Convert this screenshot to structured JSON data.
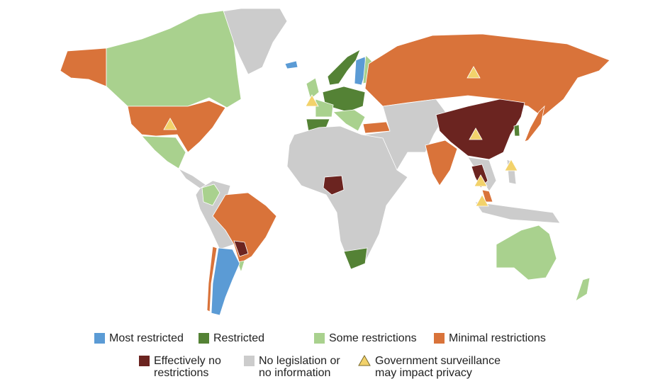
{
  "legend": {
    "items": [
      {
        "label": "Most restricted",
        "color": "#5b9bd5"
      },
      {
        "label": "Restricted",
        "color": "#548235"
      },
      {
        "label": "Some restrictions",
        "color": "#a9d18e"
      },
      {
        "label": "Minimal restrictions",
        "color": "#d9733a"
      },
      {
        "label": "Effectively no restrictions",
        "color": "#6b2420"
      },
      {
        "label": "No legislation or no information",
        "color": "#cccccc"
      },
      {
        "label": "Government surveillance may impact privacy",
        "color": "#f2d26b"
      }
    ]
  }
}
